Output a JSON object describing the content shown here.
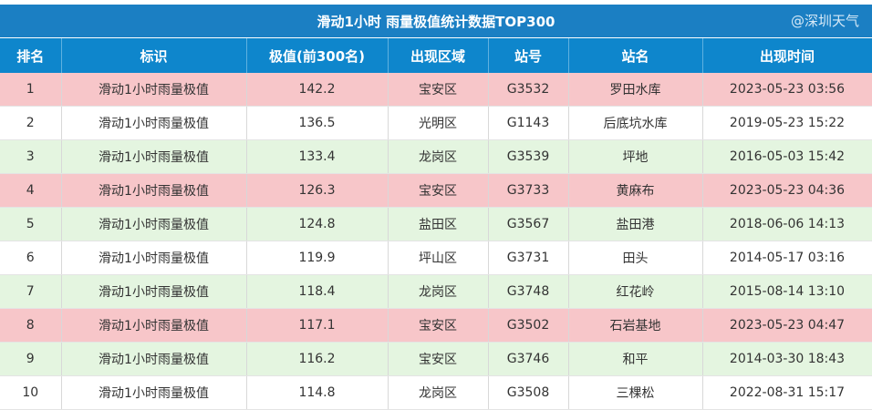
{
  "title": "滑动1小时 雨量极值统计数据TOP300",
  "columns": [
    "排名",
    "标识",
    "极值(前300名)",
    "出现区域",
    "站号",
    "站名",
    "出现时间"
  ],
  "rows": [
    {
      "type": "pink",
      "cells": [
        "1",
        "滑动1小时雨量极值",
        "142.2",
        "宝安区",
        "G3532",
        "罗田水库",
        "2023-05-23 03:56"
      ]
    },
    {
      "type": "white",
      "cells": [
        "2",
        "滑动1小时雨量极值",
        "136.5",
        "光明区",
        "G1143",
        "后底坑水库",
        "2019-05-23 15:22"
      ]
    },
    {
      "type": "green",
      "cells": [
        "3",
        "滑动1小时雨量极值",
        "133.4",
        "龙岗区",
        "G3539",
        "坪地",
        "2016-05-03 15:42"
      ]
    },
    {
      "type": "pink",
      "cells": [
        "4",
        "滑动1小时雨量极值",
        "126.3",
        "宝安区",
        "G3733",
        "黄麻布",
        "2023-05-23 04:36"
      ]
    },
    {
      "type": "green",
      "cells": [
        "5",
        "滑动1小时雨量极值",
        "124.8",
        "盐田区",
        "G3567",
        "盐田港",
        "2018-06-06 14:13"
      ]
    },
    {
      "type": "white",
      "cells": [
        "6",
        "滑动1小时雨量极值",
        "119.9",
        "坪山区",
        "G3731",
        "田头",
        "2014-05-17 03:16"
      ]
    },
    {
      "type": "green",
      "cells": [
        "7",
        "滑动1小时雨量极值",
        "118.4",
        "龙岗区",
        "G3748",
        "红花岭",
        "2015-08-14 13:10"
      ]
    },
    {
      "type": "pink",
      "cells": [
        "8",
        "滑动1小时雨量极值",
        "117.1",
        "宝安区",
        "G3502",
        "石岩基地",
        "2023-05-23 04:47"
      ]
    },
    {
      "type": "green",
      "cells": [
        "9",
        "滑动1小时雨量极值",
        "116.2",
        "宝安区",
        "G3746",
        "和平",
        "2014-03-30 18:43"
      ]
    },
    {
      "type": "white",
      "cells": [
        "10",
        "滑动1小时雨量极值",
        "114.8",
        "龙岗区",
        "G3508",
        "三棵松",
        "2022-08-31 15:17"
      ]
    }
  ],
  "watermark": "@深圳天气",
  "colors": {
    "title_bg": "#1b7fc3",
    "header_bg": "#0e86cc",
    "pink_row": "#f7c6c9",
    "green_row": "#e4f5e0"
  }
}
